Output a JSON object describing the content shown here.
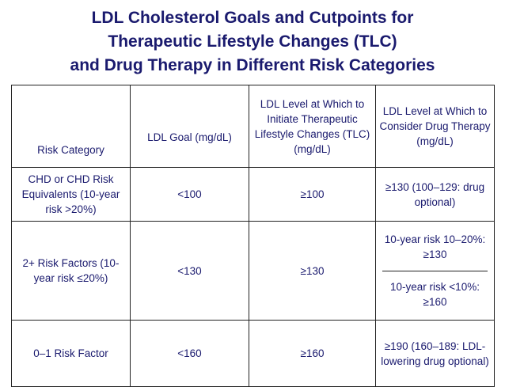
{
  "title": {
    "line1": "LDL Cholesterol Goals and Cutpoints for",
    "line2": "Therapeutic Lifestyle Changes (TLC)",
    "line3": "and Drug Therapy in Different Risk Categories"
  },
  "table": {
    "headers": {
      "risk_category": "Risk Category",
      "ldl_goal": "LDL Goal (mg/dL)",
      "tlc": "LDL Level at Which to Initiate Therapeutic Lifestyle Changes (TLC) (mg/dL)",
      "drug": "LDL Level at Which to Consider Drug Therapy (mg/dL)"
    },
    "rows": [
      {
        "category": "CHD or CHD Risk Equivalents (10-year risk >20%)",
        "goal": "<100",
        "tlc": "≥100",
        "drug": "≥130 (100–129: drug optional)"
      },
      {
        "category": "2+ Risk Factors (10-year risk ≤20%)",
        "goal": "<130",
        "tlc": "≥130",
        "drug_top": "10-year risk 10–20%: ≥130",
        "drug_bottom": "10-year risk <10%: ≥160"
      },
      {
        "category": "0–1 Risk Factor",
        "goal": "<160",
        "tlc": "≥160",
        "drug": "≥190 (160–189: LDL-lowering drug optional)"
      }
    ]
  }
}
